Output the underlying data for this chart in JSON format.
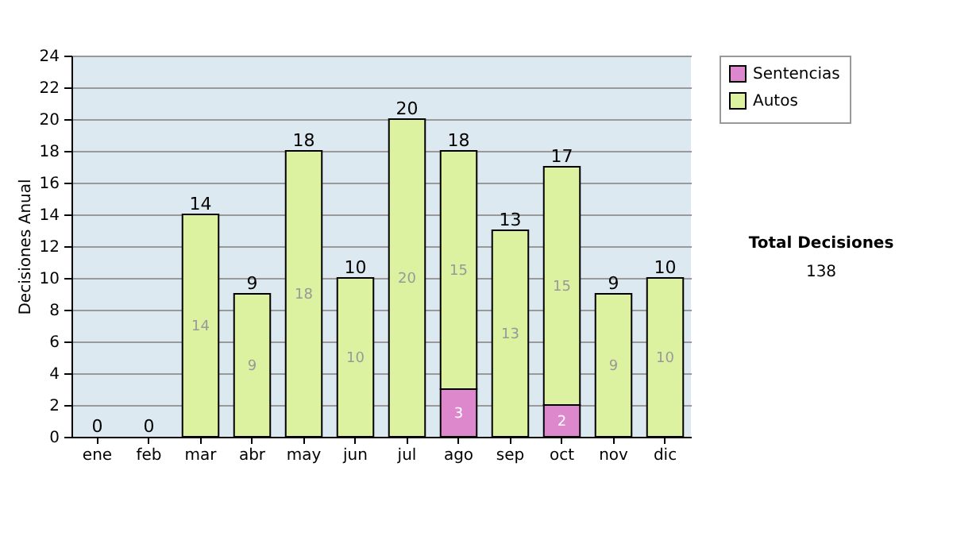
{
  "chart_data": {
    "type": "bar",
    "stacked": true,
    "categories": [
      "ene",
      "feb",
      "mar",
      "abr",
      "may",
      "jun",
      "jul",
      "ago",
      "sep",
      "oct",
      "nov",
      "dic"
    ],
    "series": [
      {
        "name": "Sentencias",
        "color": "#dd88cc",
        "values": [
          0,
          0,
          0,
          0,
          0,
          0,
          0,
          3,
          0,
          2,
          0,
          0
        ],
        "value_labels": [
          null,
          null,
          null,
          null,
          null,
          null,
          null,
          "3",
          null,
          "2",
          null,
          null
        ]
      },
      {
        "name": "Autos",
        "color": "#dcf2a0",
        "values": [
          0,
          0,
          14,
          9,
          18,
          10,
          20,
          15,
          13,
          15,
          9,
          10
        ],
        "value_labels": [
          null,
          null,
          "14",
          "9",
          "18",
          "10",
          "20",
          "15",
          "13",
          "15",
          "9",
          "10"
        ]
      }
    ],
    "totals": [
      "0",
      "0",
      "14",
      "9",
      "18",
      "10",
      "20",
      "18",
      "13",
      "17",
      "9",
      "10"
    ],
    "ylabel": "Decisiones Anual",
    "ylim": [
      0,
      24
    ],
    "yticks": [
      0,
      2,
      4,
      6,
      8,
      10,
      12,
      14,
      16,
      18,
      20,
      22,
      24
    ],
    "grid": "y",
    "legend": "right",
    "annotations": [
      "Total Decisiones",
      "138"
    ]
  }
}
